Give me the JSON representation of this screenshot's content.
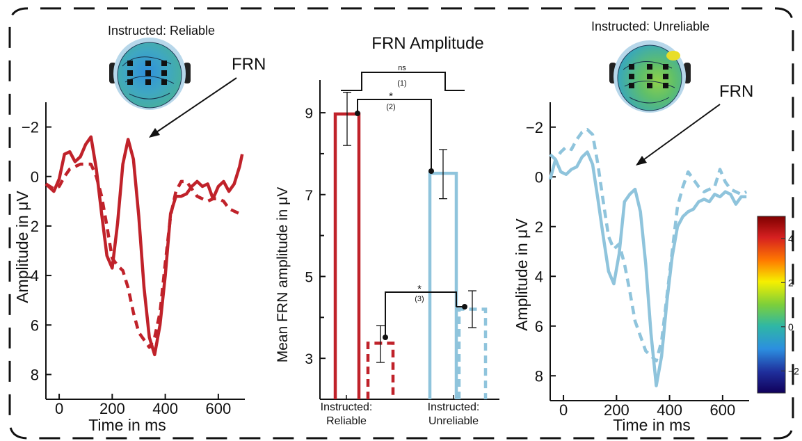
{
  "chart_data": [
    {
      "type": "line",
      "title": "Instructed: Reliable",
      "annotation": "FRN",
      "xlabel": "Time in ms",
      "ylabel": "Amplitude in μV",
      "xlim": [
        -50,
        700
      ],
      "ylim": [
        9,
        -3
      ],
      "y_inverted": true,
      "xticks": [
        0,
        200,
        400,
        600
      ],
      "yticks": [
        -2,
        0,
        2,
        4,
        6,
        8
      ],
      "color": "#c0222a",
      "series": [
        {
          "style": "solid",
          "x": [
            -50,
            -20,
            0,
            20,
            40,
            60,
            80,
            100,
            120,
            140,
            160,
            180,
            200,
            220,
            240,
            260,
            280,
            300,
            320,
            340,
            360,
            380,
            400,
            420,
            440,
            460,
            480,
            500,
            520,
            540,
            560,
            580,
            600,
            620,
            640,
            660,
            680,
            690
          ],
          "y": [
            0.3,
            0.6,
            0.1,
            -0.9,
            -1.0,
            -0.6,
            -0.8,
            -1.3,
            -1.6,
            -0.3,
            1.5,
            3.2,
            3.7,
            1.9,
            -0.5,
            -1.5,
            -0.7,
            1.6,
            4.5,
            6.5,
            7.2,
            6.0,
            4.0,
            1.5,
            0.8,
            0.8,
            0.7,
            0.4,
            0.2,
            0.4,
            0.3,
            0.9,
            0.4,
            0.2,
            0.6,
            0.3,
            -0.4,
            -0.9
          ]
        },
        {
          "style": "dashed",
          "x": [
            -50,
            -20,
            0,
            20,
            40,
            60,
            80,
            100,
            120,
            140,
            160,
            180,
            200,
            220,
            240,
            260,
            280,
            300,
            320,
            340,
            360,
            380,
            400,
            420,
            440,
            460,
            480,
            500,
            520,
            540,
            560,
            580,
            600,
            620,
            640,
            660,
            680,
            690
          ],
          "y": [
            0.3,
            0.5,
            0.4,
            0.0,
            -0.3,
            -0.4,
            -0.5,
            -0.5,
            -0.5,
            0.0,
            0.8,
            2.0,
            3.3,
            3.6,
            3.8,
            4.5,
            5.5,
            6.3,
            6.6,
            6.9,
            6.5,
            5.5,
            3.5,
            1.6,
            0.6,
            0.2,
            0.2,
            0.5,
            0.8,
            0.9,
            1.0,
            0.9,
            0.9,
            1.0,
            1.3,
            1.4,
            1.5,
            1.6
          ]
        }
      ]
    },
    {
      "type": "bar",
      "title": "FRN Amplitude",
      "ylabel": "Mean FRN amplitude in μV",
      "ylim": [
        2,
        9.8
      ],
      "yticks": [
        3,
        5,
        7,
        9
      ],
      "categories": [
        "Instructed: Reliable",
        "Instructed: Unreliable"
      ],
      "category_lines": [
        [
          "Instructed:",
          "Reliable"
        ],
        [
          "Instructed:",
          "Unreliable"
        ]
      ],
      "bars": [
        {
          "group": 0,
          "style": "solid",
          "value": 8.97,
          "err_low": 8.2,
          "err_high": 9.5,
          "color": "#c0222a"
        },
        {
          "group": 0,
          "style": "dashed",
          "value": 3.37,
          "err_low": 2.9,
          "err_high": 3.8,
          "color": "#c0222a"
        },
        {
          "group": 1,
          "style": "solid",
          "value": 7.52,
          "err_low": 6.9,
          "err_high": 8.1,
          "color": "#8fc4dc"
        },
        {
          "group": 1,
          "style": "dashed",
          "value": 4.2,
          "err_low": 3.75,
          "err_high": 4.65,
          "color": "#8fc4dc"
        }
      ],
      "significance": [
        {
          "label": "ns",
          "index": "(1)"
        },
        {
          "label": "*",
          "index": "(2)"
        },
        {
          "label": "*",
          "index": "(3)"
        }
      ]
    },
    {
      "type": "line",
      "title": "Instructed: Unreliable",
      "annotation": "FRN",
      "xlabel": "Time in ms",
      "ylabel": "Amplitude in μV",
      "xlim": [
        -50,
        700
      ],
      "ylim": [
        9,
        -3
      ],
      "y_inverted": true,
      "xticks": [
        0,
        200,
        400,
        600
      ],
      "yticks": [
        -2,
        0,
        2,
        4,
        6,
        8
      ],
      "color": "#8fc4dc",
      "series": [
        {
          "style": "solid",
          "x": [
            -50,
            -30,
            -10,
            10,
            30,
            50,
            70,
            90,
            110,
            130,
            150,
            170,
            190,
            210,
            230,
            250,
            270,
            290,
            310,
            330,
            350,
            370,
            390,
            410,
            430,
            450,
            470,
            490,
            510,
            530,
            550,
            570,
            590,
            610,
            630,
            650,
            670,
            690
          ],
          "y": [
            0.1,
            -0.7,
            -0.2,
            -0.1,
            -0.3,
            -0.4,
            -0.8,
            -1.0,
            -0.5,
            0.9,
            2.4,
            3.8,
            4.3,
            3.1,
            1.0,
            0.7,
            0.5,
            1.4,
            3.5,
            6.3,
            8.4,
            7.2,
            5.0,
            3.2,
            2.0,
            1.6,
            1.4,
            1.3,
            1.0,
            0.9,
            1.0,
            0.7,
            0.8,
            0.6,
            0.7,
            1.1,
            0.8,
            0.8
          ]
        },
        {
          "style": "dashed",
          "x": [
            -50,
            -30,
            -10,
            10,
            30,
            50,
            70,
            90,
            110,
            130,
            150,
            170,
            190,
            210,
            230,
            250,
            270,
            290,
            310,
            330,
            350,
            370,
            390,
            410,
            430,
            450,
            470,
            490,
            510,
            530,
            550,
            570,
            590,
            610,
            630,
            650,
            670,
            690
          ],
          "y": [
            -0.9,
            -0.7,
            -1.0,
            -1.2,
            -1.1,
            -1.5,
            -1.8,
            -1.9,
            -1.7,
            -0.5,
            1.0,
            2.4,
            2.9,
            2.7,
            3.5,
            4.6,
            5.8,
            6.4,
            7.0,
            7.2,
            7.4,
            6.6,
            4.8,
            3.0,
            1.2,
            0.4,
            -0.2,
            0.1,
            0.4,
            0.6,
            0.5,
            0.4,
            -0.3,
            0.2,
            0.5,
            0.6,
            0.7,
            0.6
          ]
        }
      ]
    }
  ],
  "colorbar": {
    "ticks": [
      4,
      2,
      0,
      -2
    ],
    "range": [
      -3,
      5
    ]
  },
  "colors": {
    "reliable": "#c0222a",
    "unreliable": "#8fc4dc"
  }
}
